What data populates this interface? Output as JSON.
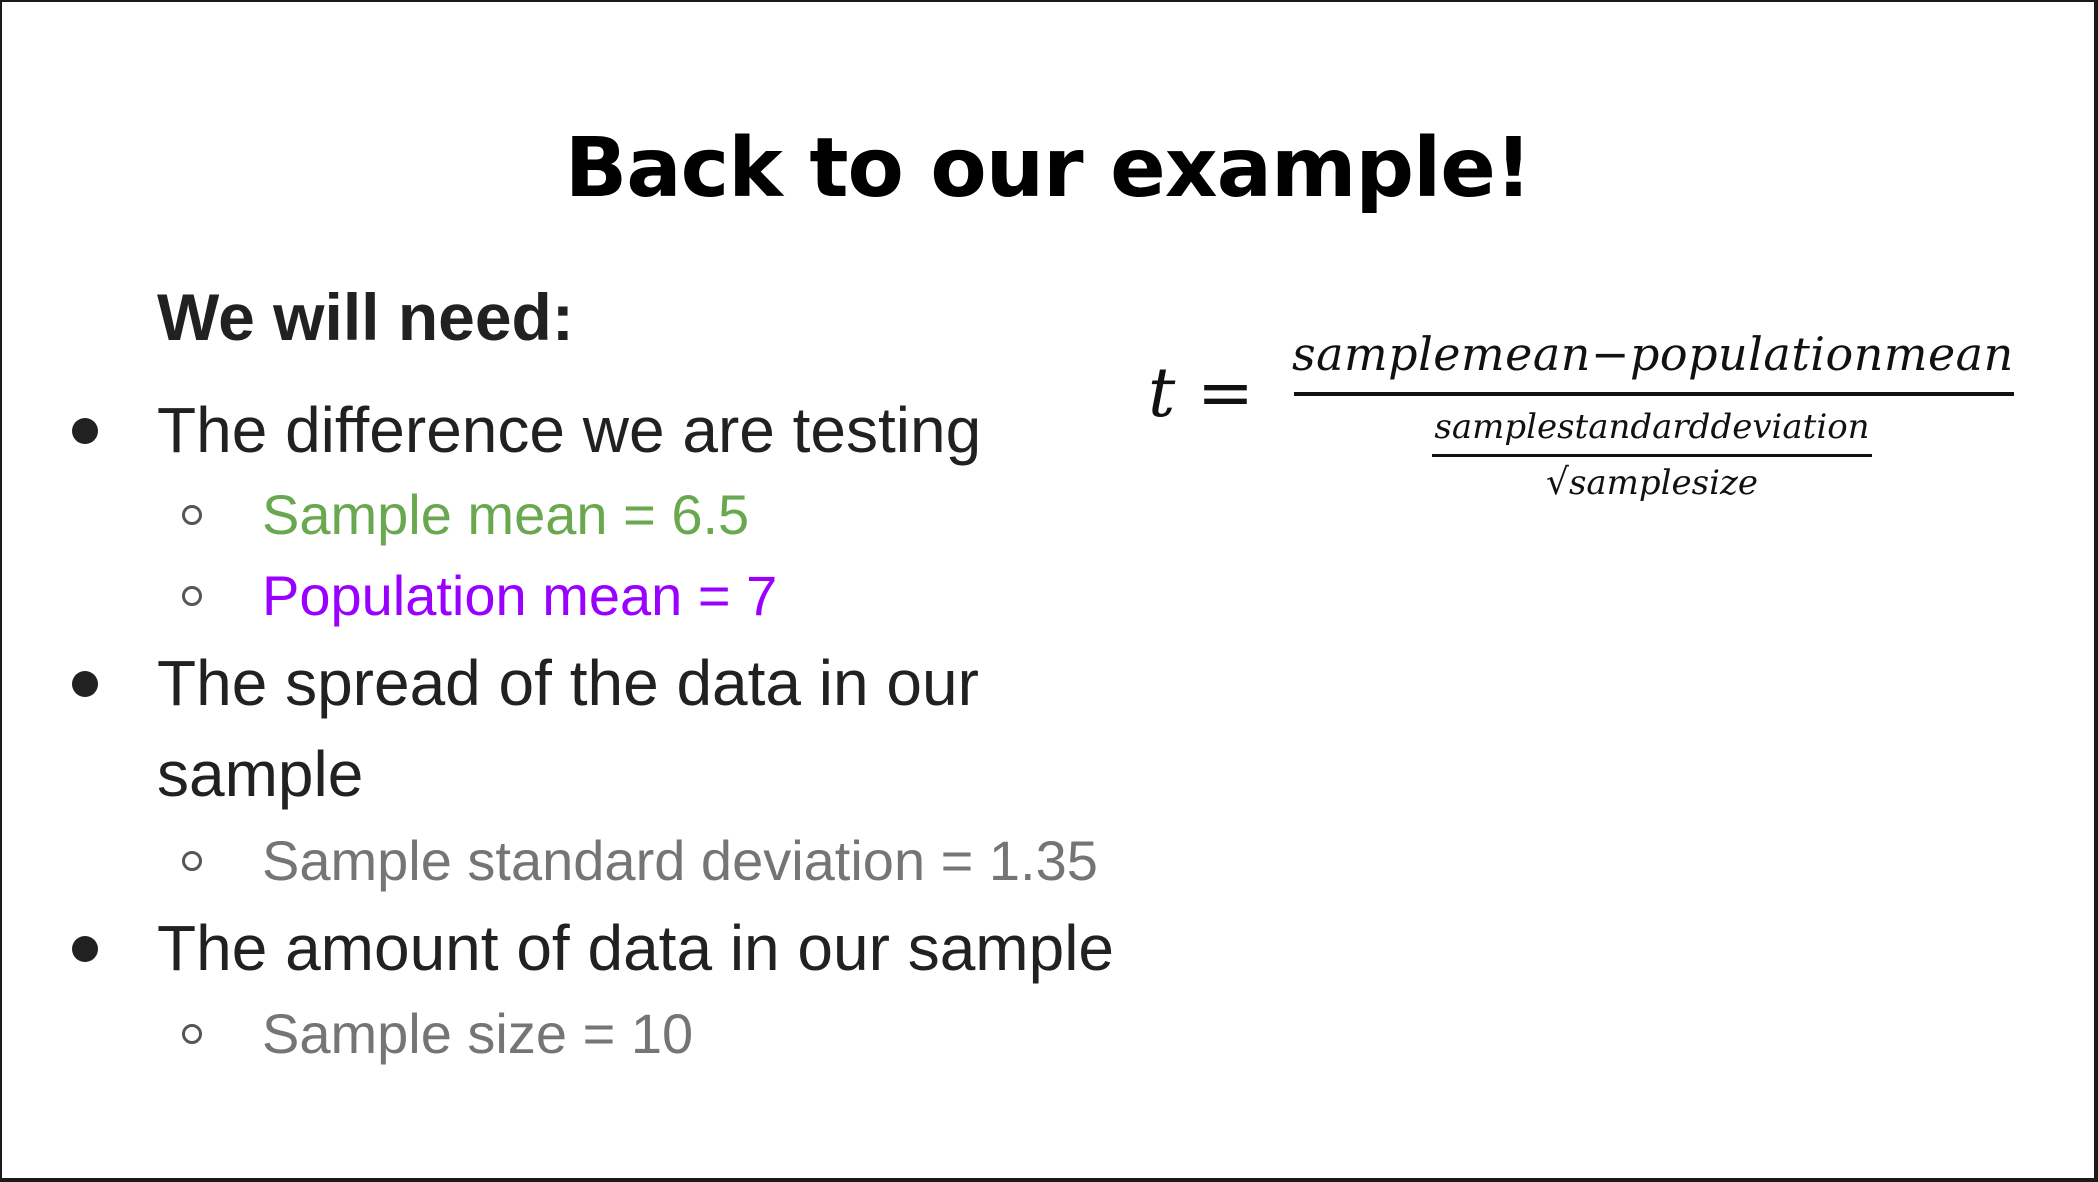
{
  "title": "Back to our example!",
  "subtitle": "We will need:",
  "items": [
    {
      "label_line1": "The difference we are testing",
      "label_line2": "",
      "subs": [
        {
          "label": "Sample mean = 6.5",
          "color": "#6aa84f"
        },
        {
          "label": "Population mean = 7",
          "color": "#9900ff"
        }
      ]
    },
    {
      "label_line1": "The spread of the data in our",
      "label_line2": "sample",
      "subs": [
        {
          "label": "Sample standard deviation = 1.35",
          "color": "#757575"
        }
      ]
    },
    {
      "label_line1": "The amount of data in our sample",
      "label_line2": "",
      "subs": [
        {
          "label": "Sample size = 10",
          "color": "#757575"
        }
      ]
    }
  ],
  "formula": {
    "lhs": "t =",
    "numerator": "samplemean−populationmean",
    "denominator_top": "samplestandarddeviation",
    "sqrt_symbol": "√",
    "denominator_bottom": "samplesize"
  }
}
